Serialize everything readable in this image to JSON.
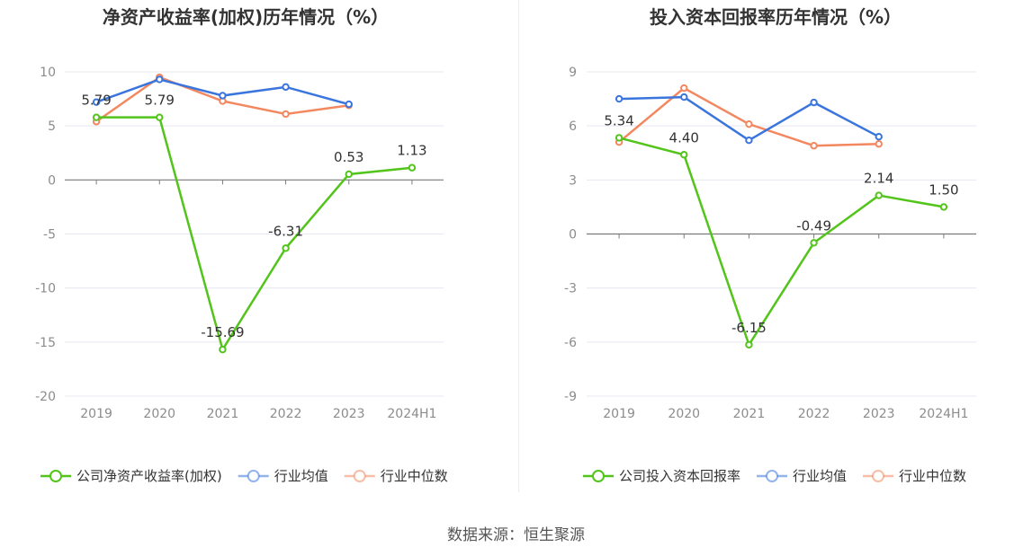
{
  "source": "数据来源：恒生聚源",
  "chart_data": [
    {
      "type": "line",
      "title": "净资产收益率(加权)历年情况（%）",
      "categories": [
        "2019",
        "2020",
        "2021",
        "2022",
        "2023",
        "2024H1"
      ],
      "ylim": [
        -20,
        10
      ],
      "yticks": [
        10,
        5,
        0,
        -5,
        -10,
        -15,
        -20
      ],
      "grid": true,
      "legend_position": "bottom",
      "series": [
        {
          "name": "公司净资产收益率(加权)",
          "color": "#52c41a",
          "labels": true,
          "values": [
            5.79,
            5.79,
            -15.69,
            -6.31,
            0.53,
            1.13
          ]
        },
        {
          "name": "行业均值",
          "color": "#3a75dd",
          "labels": false,
          "values": [
            7.2,
            9.3,
            7.8,
            8.6,
            7.0,
            null
          ]
        },
        {
          "name": "行业中位数",
          "color": "#f3875f",
          "labels": false,
          "values": [
            5.4,
            9.5,
            7.3,
            6.1,
            6.9,
            null
          ]
        }
      ]
    },
    {
      "type": "line",
      "title": "投入资本回报率历年情况（%）",
      "categories": [
        "2019",
        "2020",
        "2021",
        "2022",
        "2023",
        "2024H1"
      ],
      "ylim": [
        -9,
        9
      ],
      "yticks": [
        9,
        6,
        3,
        0,
        -3,
        -6,
        -9
      ],
      "grid": true,
      "legend_position": "bottom",
      "series": [
        {
          "name": "公司投入资本回报率",
          "color": "#52c41a",
          "labels": true,
          "values": [
            5.34,
            4.4,
            -6.15,
            -0.49,
            2.14,
            1.5
          ]
        },
        {
          "name": "行业均值",
          "color": "#3a75dd",
          "labels": false,
          "values": [
            7.5,
            7.6,
            5.2,
            7.3,
            5.4,
            null
          ]
        },
        {
          "name": "行业中位数",
          "color": "#f3875f",
          "labels": false,
          "values": [
            5.1,
            8.1,
            6.1,
            4.9,
            5.0,
            null
          ]
        }
      ]
    }
  ]
}
